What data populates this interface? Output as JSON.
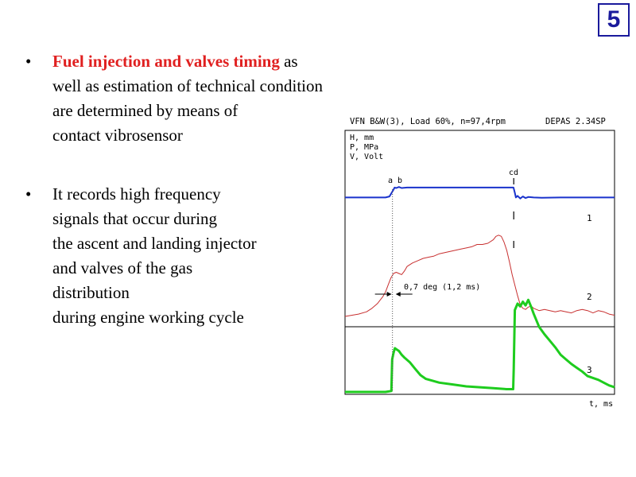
{
  "slide_number": "5",
  "bullets": [
    {
      "marker": "•",
      "highlight": "Fuel injection and valves timing",
      "first_rest": " as",
      "lines": [
        "well as estimation of technical condition",
        "are determined by means of",
        "contact vibrosensor"
      ]
    },
    {
      "marker": "•",
      "first": "It records high frequency",
      "lines": [
        "signals that occur during",
        "the ascent and landing injector",
        "and valves  of the gas",
        "distribution",
        "during engine working cycle"
      ]
    }
  ],
  "chart_data": {
    "type": "line",
    "title": "VFN B&W(3), Load 60%, n=97,4rpm",
    "software": "DEPAS 2.34SP",
    "y_units": [
      "H, mm",
      "P, MPa",
      "V, Volt"
    ],
    "xlabel": "t, ms",
    "xlim": [
      0,
      100
    ],
    "ylim": [
      0,
      100
    ],
    "grid": false,
    "annotations": {
      "ab": "a b",
      "cd": "cd",
      "delay": "0,7 deg (1,2 ms)",
      "delay_start_x": 17.6,
      "delay_end_x": 18.5
    },
    "series": [
      {
        "name": "1",
        "color": "#1a33cc",
        "x": [
          0,
          15,
          16.5,
          18,
          18.4,
          19,
          20,
          21,
          23,
          30,
          40,
          50,
          55,
          60,
          62.5,
          63,
          63.4,
          64,
          65,
          66,
          67,
          68,
          70,
          73,
          80,
          90,
          100
        ],
        "y": [
          63,
          63,
          65,
          78,
          82,
          81,
          83,
          81,
          82,
          82,
          82,
          82,
          82,
          82,
          82,
          72,
          63,
          66,
          61,
          65,
          62,
          64,
          63,
          62.5,
          63,
          63,
          63
        ]
      },
      {
        "name": "2",
        "color": "#c83030",
        "x": [
          0,
          5,
          8,
          10,
          12,
          14,
          15,
          16,
          17,
          18,
          19,
          20,
          21,
          22,
          23,
          25,
          27,
          29,
          31,
          33,
          35,
          37,
          39,
          41,
          43,
          45,
          47,
          49,
          51,
          53,
          55,
          56,
          57,
          58,
          59,
          60,
          61,
          62,
          63,
          64,
          65,
          66,
          67,
          68,
          69,
          70,
          72,
          74,
          76,
          78,
          80,
          82,
          84,
          86,
          88,
          90,
          92,
          94,
          96,
          98,
          100
        ],
        "y": [
          0,
          2,
          4,
          7,
          11,
          17,
          21,
          27,
          33,
          37,
          38,
          37,
          36,
          39,
          43,
          46,
          48,
          50,
          51,
          52,
          54,
          55,
          56,
          57,
          58,
          59,
          60,
          62,
          62,
          63,
          66,
          69,
          70,
          69,
          64,
          57,
          47,
          36,
          27,
          18,
          10,
          7,
          6,
          8,
          9,
          7,
          5,
          6,
          5,
          4,
          5,
          4,
          3,
          5,
          6,
          5,
          3,
          5,
          4,
          2,
          1
        ]
      },
      {
        "name": "3",
        "color": "#1ecc1e",
        "x": [
          0,
          5,
          10,
          15,
          17.2,
          17.5,
          18,
          18.5,
          19,
          20,
          21,
          22,
          24,
          26,
          28,
          30,
          35,
          40,
          45,
          50,
          55,
          60,
          62.4,
          62.6,
          63,
          64,
          65,
          66,
          67,
          68,
          69,
          70,
          72,
          74,
          76,
          78,
          80,
          82,
          84,
          86,
          88,
          90,
          92,
          94,
          96,
          98,
          100
        ],
        "y": [
          0,
          0,
          0,
          0,
          1,
          35,
          42,
          47,
          46,
          44,
          40,
          37,
          32,
          25,
          18,
          14,
          10,
          8,
          6,
          5,
          4,
          3,
          3,
          25,
          88,
          95,
          92,
          97,
          93,
          99,
          92,
          84,
          70,
          62,
          55,
          48,
          40,
          35,
          30,
          26,
          22,
          17,
          15,
          13,
          10,
          7,
          5
        ]
      }
    ]
  }
}
